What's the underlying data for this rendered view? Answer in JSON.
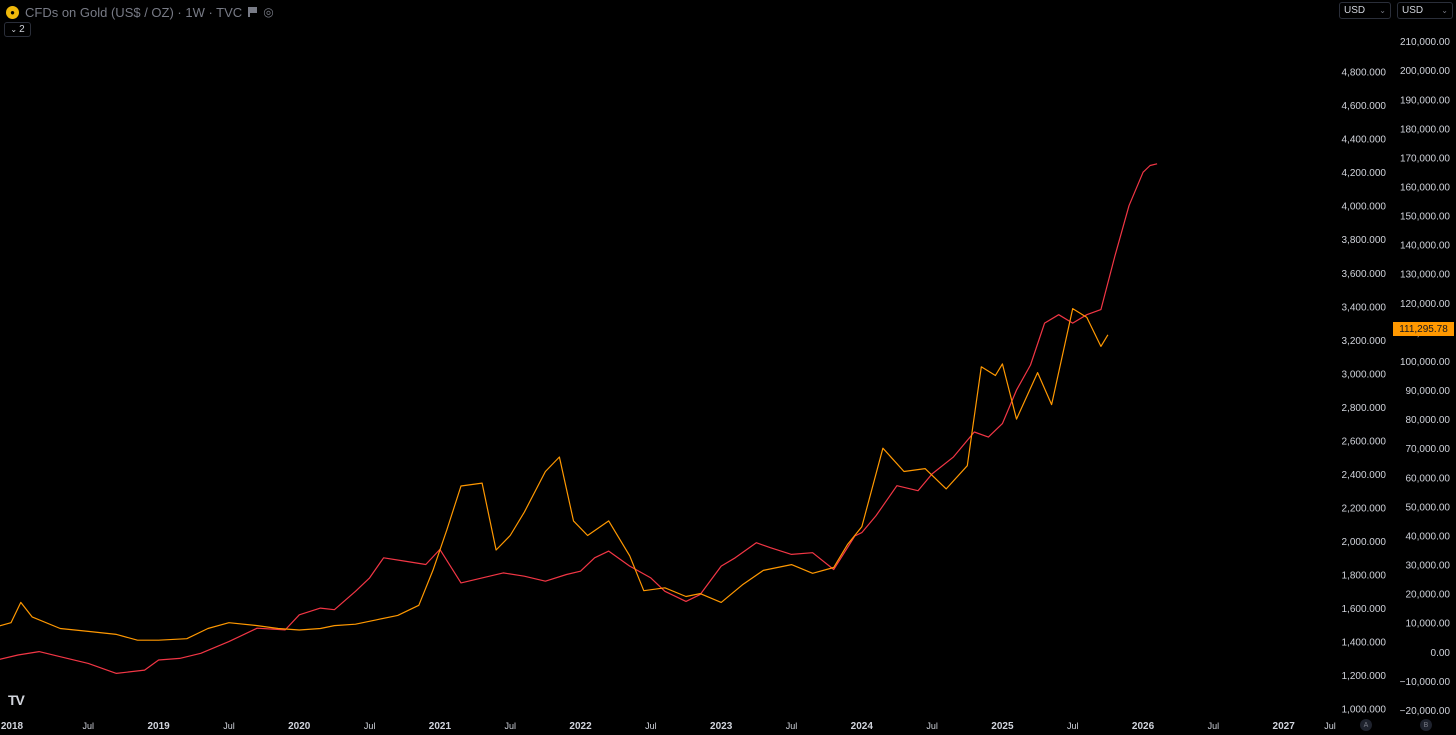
{
  "header": {
    "symbol_title": "CFDs on Gold (US$ / OZ) · 1W · TVC",
    "indicator_count": "2"
  },
  "currency_selectors": {
    "left": "USD",
    "right": "USD"
  },
  "last_price_label": "111,295.78",
  "badges": {
    "a": "A",
    "b": "B"
  },
  "colors": {
    "background": "#000000",
    "gold_line": "#f23645",
    "bitcoin_line": "#ff9800",
    "axis_text": "#d1d4dc",
    "price_tag": "#ff9800"
  },
  "icons": [
    "gold-coin-icon",
    "flag-icon",
    "hide-eye-icon",
    "chevron-down-icon",
    "tradingview-logo-icon"
  ],
  "chart_data": {
    "type": "line",
    "x_axis": {
      "ticks": [
        "2018",
        "Jul",
        "2019",
        "Jul",
        "2020",
        "Jul",
        "2021",
        "Jul",
        "2022",
        "Jul",
        "2023",
        "Jul",
        "2024",
        "Jul",
        "2025",
        "Jul",
        "2026",
        "Jul",
        "2027",
        "Jul"
      ],
      "xlim": [
        2018.0,
        2027.5
      ]
    },
    "left_axis": {
      "ticks": [
        "1,000.000",
        "1,200.000",
        "1,400.000",
        "1,600.000",
        "1,800.000",
        "2,000.000",
        "2,200.000",
        "2,400.000",
        "2,600.000",
        "2,800.000",
        "3,000.000",
        "3,200.000",
        "3,400.000",
        "3,600.000",
        "3,800.000",
        "4,000.000",
        "4,200.000",
        "4,400.000",
        "4,600.000",
        "4,800.000"
      ],
      "ylim": [
        980,
        5060
      ]
    },
    "right_axis": {
      "ticks": [
        "−20,000.00",
        "−10,000.00",
        "0.00",
        "10,000.00",
        "20,000.00",
        "30,000.00",
        "40,000.00",
        "50,000.00",
        "60,000.00",
        "70,000.00",
        "80,000.00",
        "90,000.00",
        "100,000.00",
        "110,000.00",
        "120,000.00",
        "130,000.00",
        "140,000.00",
        "150,000.00",
        "160,000.00",
        "170,000.00",
        "180,000.00",
        "190,000.00",
        "200,000.00",
        "210,000.00"
      ],
      "ylim": [
        -20700,
        214500
      ]
    },
    "series": [
      {
        "axis": "left",
        "x": [
          2017.8,
          2018.0,
          2018.15,
          2018.3,
          2018.5,
          2018.7,
          2018.9,
          2019.0,
          2019.15,
          2019.3,
          2019.5,
          2019.7,
          2019.9,
          2020.0,
          2020.15,
          2020.25,
          2020.4,
          2020.5,
          2020.6,
          2020.75,
          2020.9,
          2021.0,
          2021.15,
          2021.3,
          2021.45,
          2021.6,
          2021.75,
          2021.9,
          2022.0,
          2022.1,
          2022.2,
          2022.35,
          2022.5,
          2022.6,
          2022.75,
          2022.85,
          2023.0,
          2023.1,
          2023.25,
          2023.35,
          2023.5,
          2023.65,
          2023.8,
          2023.95,
          2024.0,
          2024.1,
          2024.25,
          2024.4,
          2024.5,
          2024.65,
          2024.8,
          2024.9,
          2025.0,
          2025.1,
          2025.2,
          2025.3,
          2025.4,
          2025.5,
          2025.6,
          2025.7,
          2025.8,
          2025.9,
          2026.0,
          2026.05,
          2026.1
        ],
        "y": [
          1280,
          1320,
          1340,
          1310,
          1270,
          1210,
          1230,
          1290,
          1300,
          1330,
          1400,
          1480,
          1470,
          1560,
          1600,
          1590,
          1700,
          1780,
          1900,
          1880,
          1860,
          1950,
          1750,
          1780,
          1810,
          1790,
          1760,
          1800,
          1820,
          1900,
          1940,
          1850,
          1780,
          1700,
          1640,
          1680,
          1850,
          1900,
          1990,
          1960,
          1920,
          1930,
          1830,
          2030,
          2050,
          2150,
          2330,
          2300,
          2400,
          2500,
          2650,
          2620,
          2700,
          2900,
          3050,
          3300,
          3350,
          3300,
          3350,
          3380,
          3700,
          4000,
          4200,
          4240,
          4250
        ]
      },
      {
        "axis": "right",
        "x": [
          2017.8,
          2017.95,
          2018.02,
          2018.1,
          2018.3,
          2018.5,
          2018.7,
          2018.85,
          2019.0,
          2019.2,
          2019.35,
          2019.5,
          2019.7,
          2019.85,
          2020.0,
          2020.15,
          2020.25,
          2020.4,
          2020.55,
          2020.7,
          2020.85,
          2020.95,
          2021.05,
          2021.15,
          2021.3,
          2021.4,
          2021.5,
          2021.6,
          2021.75,
          2021.85,
          2021.95,
          2022.05,
          2022.2,
          2022.35,
          2022.45,
          2022.6,
          2022.75,
          2022.85,
          2023.0,
          2023.15,
          2023.3,
          2023.5,
          2023.65,
          2023.8,
          2023.9,
          2024.0,
          2024.15,
          2024.3,
          2024.45,
          2024.6,
          2024.75,
          2024.85,
          2024.95,
          2025.0,
          2025.1,
          2025.25,
          2025.35,
          2025.5,
          2025.6,
          2025.7,
          2025.75
        ],
        "y": [
          8000,
          10000,
          17000,
          12000,
          8000,
          7000,
          6000,
          4000,
          4000,
          4500,
          8000,
          10000,
          9000,
          8000,
          7500,
          8000,
          9000,
          9500,
          11000,
          12500,
          16000,
          28000,
          42000,
          57000,
          58000,
          35000,
          40000,
          48000,
          62000,
          67000,
          45000,
          40000,
          45000,
          33000,
          21000,
          22000,
          19000,
          20000,
          17000,
          23000,
          28000,
          30000,
          27000,
          29000,
          37000,
          43000,
          70000,
          62000,
          63000,
          56000,
          64000,
          98000,
          95000,
          99000,
          80000,
          96000,
          85000,
          118000,
          115000,
          105000,
          109000
        ]
      }
    ]
  }
}
